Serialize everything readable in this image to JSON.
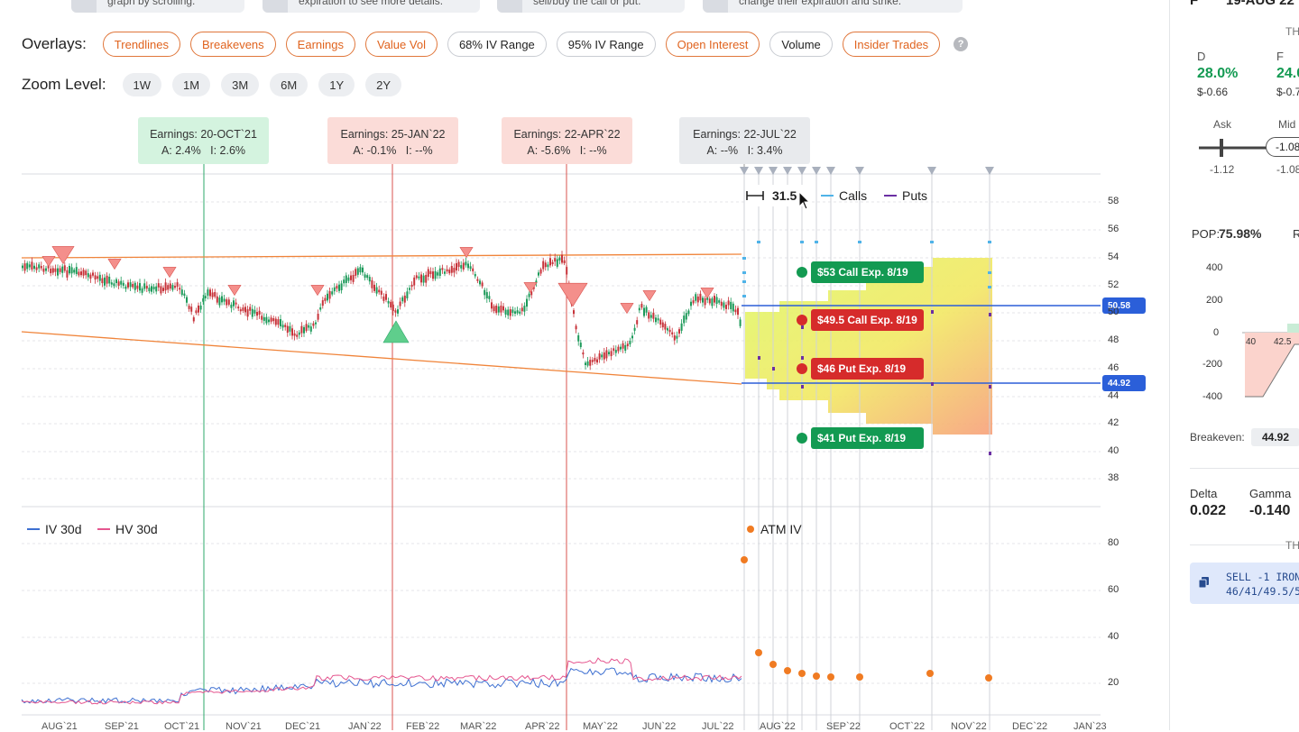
{
  "tips": [
    {
      "text": "graph by scrolling."
    },
    {
      "text": "expiration to see more details."
    },
    {
      "text": "sell/buy the call or put."
    },
    {
      "text": "change their expiration and strike."
    }
  ],
  "overlays": {
    "label": "Overlays:",
    "items": [
      {
        "label": "Trendlines",
        "active": true
      },
      {
        "label": "Breakevens",
        "active": true
      },
      {
        "label": "Earnings",
        "active": true
      },
      {
        "label": "Value Vol",
        "active": true
      },
      {
        "label": "68% IV Range",
        "active": false
      },
      {
        "label": "95% IV Range",
        "active": false
      },
      {
        "label": "Open Interest",
        "active": true
      },
      {
        "label": "Volume",
        "active": false
      },
      {
        "label": "Insider Trades",
        "active": true
      }
    ],
    "help": "?"
  },
  "zoom": {
    "label": "Zoom Level:",
    "items": [
      "1W",
      "1M",
      "3M",
      "6M",
      "1Y",
      "2Y"
    ]
  },
  "earnings": [
    {
      "title": "Earnings: 20-OCT`21",
      "a": "A: 2.4%",
      "i": "I: 2.6%"
    },
    {
      "title": "Earnings: 25-JAN`22",
      "a": "A: -0.1%",
      "i": "I: --%"
    },
    {
      "title": "Earnings: 22-APR`22",
      "a": "A: -5.6%",
      "i": "I: --%"
    },
    {
      "title": "Earnings: 22-JUL`22",
      "a": "A: --%",
      "i": "I: 3.4%"
    }
  ],
  "price_axis": [
    "58",
    "56",
    "54",
    "52",
    "50",
    "48",
    "46",
    "44",
    "42",
    "40",
    "38"
  ],
  "vol_axis": [
    "80",
    "60",
    "40",
    "20"
  ],
  "x_axis": [
    "AUG`21",
    "SEP`21",
    "OCT`21",
    "NOV`21",
    "DEC`21",
    "JAN`22",
    "FEB`22",
    "MAR`22",
    "APR`22",
    "MAY`22",
    "JUN`22",
    "JUL`22",
    "AUG`22",
    "SEP`22",
    "OCT`22",
    "NOV`22",
    "DEC`22",
    "JAN`23"
  ],
  "legend_top": {
    "ruler": "31.5",
    "calls": "Calls",
    "puts": "Puts"
  },
  "legend_vol": {
    "iv": "IV 30d",
    "hv": "HV 30d",
    "atm": "ATM IV"
  },
  "price_tags": {
    "upper": "50.58",
    "lower": "44.92"
  },
  "strikes": [
    {
      "label": "$53 Call Exp. 8/19",
      "color": "green"
    },
    {
      "label": "$49.5 Call Exp. 8/19",
      "color": "red"
    },
    {
      "label": "$46 Put Exp. 8/19",
      "color": "red"
    },
    {
      "label": "$41 Put Exp. 8/19",
      "color": "green"
    }
  ],
  "colors": {
    "accent": "#e0631e",
    "calls": "#4fb3e8",
    "puts": "#6b2fa3",
    "iv": "#3d6fd1",
    "hv": "#e5568f",
    "atm": "#f07b22",
    "blue_line": "#2b5fd9",
    "trend": "#f0843a"
  },
  "right_panel": {
    "header_date": "19-AUG 22",
    "header_prefix": "F",
    "section_th": "TH",
    "col_d": "D",
    "col_f": "F",
    "d_pct": "28.0%",
    "f_pct": "24.0",
    "d_val": "$-0.66",
    "f_val": "$-0.7",
    "ask": "Ask",
    "mid": "Mid",
    "ask_val": "-1.12",
    "mid_val": "-1.08",
    "mid_box": "-1.08",
    "pop_label": "POP:",
    "pop_value": "75.98%",
    "r_label": "R",
    "pl_y": [
      "400",
      "200",
      "0",
      "-200",
      "-400"
    ],
    "pl_x": [
      "40",
      "42.5"
    ],
    "breakeven_label": "Breakeven:",
    "breakeven_value": "44.92",
    "delta_label": "Delta",
    "delta_value": "0.022",
    "gamma_label": "Gamma",
    "gamma_value": "-0.140",
    "section_th2": "TH",
    "trade_line1": "SELL -1 IRON",
    "trade_line2": "46/41/49.5/5"
  }
}
